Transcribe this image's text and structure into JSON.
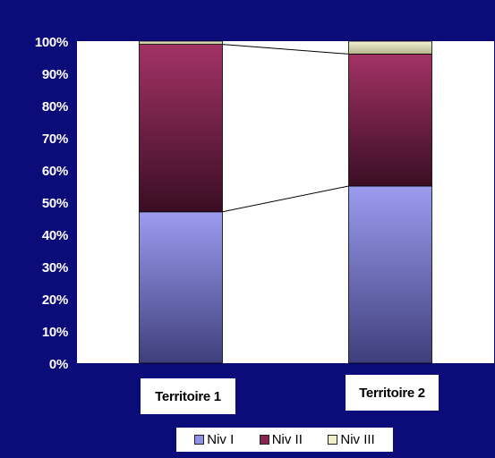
{
  "chart_data": {
    "type": "bar",
    "stacked": true,
    "percent": true,
    "categories": [
      "Territoire 1",
      "Territoire 2"
    ],
    "series": [
      {
        "name": "Niv I",
        "values": [
          47,
          55
        ],
        "color": "#8f90e6"
      },
      {
        "name": "Niv II",
        "values": [
          52,
          41
        ],
        "color": "#8a2452"
      },
      {
        "name": "Niv III",
        "values": [
          1,
          4
        ],
        "color": "#efeecb"
      }
    ],
    "ylim": [
      0,
      100
    ],
    "yticks": [
      "0%",
      "10%",
      "20%",
      "30%",
      "40%",
      "50%",
      "60%",
      "70%",
      "80%",
      "90%",
      "100%"
    ],
    "series_lines": true,
    "legend_position": "bottom",
    "background": "#0b0b7a",
    "plot_background": "#ffffff"
  }
}
